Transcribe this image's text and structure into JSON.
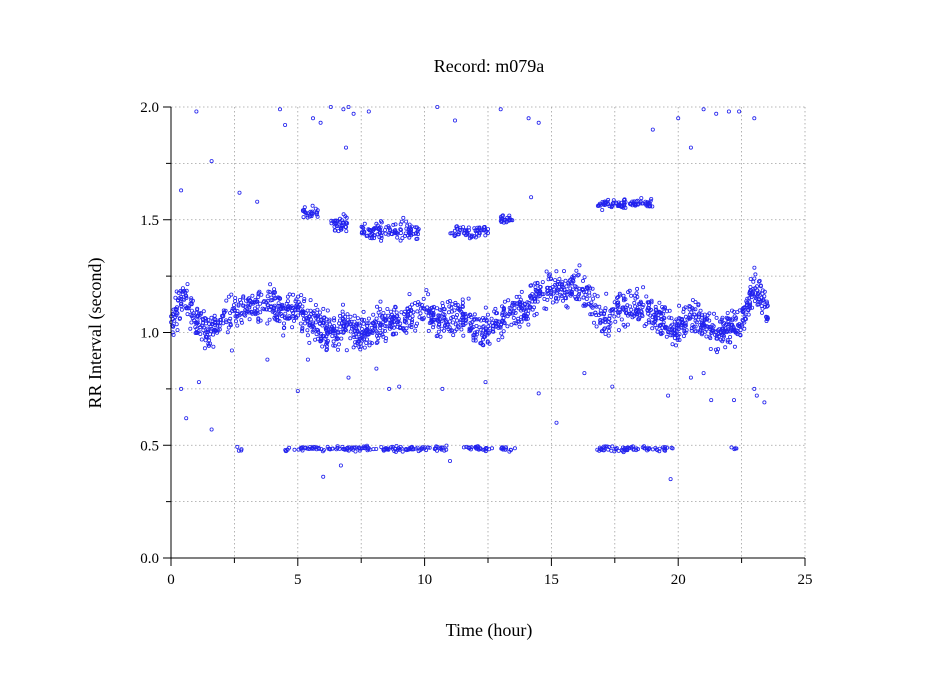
{
  "chart_data": {
    "type": "scatter",
    "title": "Record:  m079a",
    "xlabel": "Time (hour)",
    "ylabel": "RR Interval (second)",
    "xlim": [
      0,
      25
    ],
    "ylim": [
      0.0,
      2.0
    ],
    "xticks": [
      0,
      5,
      10,
      15,
      20,
      25
    ],
    "xtick_labels": [
      "0",
      "5",
      "10",
      "15",
      "20",
      "25"
    ],
    "yticks": [
      0.0,
      0.5,
      1.0,
      1.5,
      2.0
    ],
    "ytick_labels": [
      "0.0",
      "0.5",
      "1.0",
      "1.5",
      "2.0"
    ],
    "grid": true,
    "marker": "open-circle",
    "marker_color": "#2222ee",
    "series": [
      {
        "baseline": [
          [
            0.0,
            1.05
          ],
          [
            0.5,
            1.15
          ],
          [
            1.0,
            1.05
          ],
          [
            1.5,
            1.0
          ],
          [
            2.0,
            1.05
          ],
          [
            2.5,
            1.1
          ],
          [
            3.0,
            1.12
          ],
          [
            3.5,
            1.1
          ],
          [
            4.0,
            1.12
          ],
          [
            4.5,
            1.08
          ],
          [
            5.0,
            1.1
          ],
          [
            5.5,
            1.05
          ],
          [
            6.0,
            1.02
          ],
          [
            6.5,
            1.0
          ],
          [
            7.0,
            1.02
          ],
          [
            7.5,
            1.0
          ],
          [
            8.0,
            1.02
          ],
          [
            8.5,
            1.05
          ],
          [
            9.0,
            1.05
          ],
          [
            9.5,
            1.08
          ],
          [
            10.0,
            1.1
          ],
          [
            10.5,
            1.05
          ],
          [
            11.0,
            1.05
          ],
          [
            11.5,
            1.08
          ],
          [
            12.0,
            1.0
          ],
          [
            12.5,
            1.02
          ],
          [
            13.0,
            1.05
          ],
          [
            13.5,
            1.1
          ],
          [
            14.0,
            1.1
          ],
          [
            14.5,
            1.18
          ],
          [
            15.0,
            1.2
          ],
          [
            15.5,
            1.18
          ],
          [
            16.0,
            1.2
          ],
          [
            16.5,
            1.15
          ],
          [
            17.0,
            1.05
          ],
          [
            17.5,
            1.1
          ],
          [
            18.0,
            1.12
          ],
          [
            18.5,
            1.12
          ],
          [
            19.0,
            1.08
          ],
          [
            19.5,
            1.05
          ],
          [
            20.0,
            1.02
          ],
          [
            20.5,
            1.08
          ],
          [
            21.0,
            1.05
          ],
          [
            21.5,
            1.0
          ],
          [
            22.0,
            1.02
          ],
          [
            22.5,
            1.05
          ],
          [
            23.0,
            1.2
          ],
          [
            23.5,
            1.1
          ]
        ],
        "baseline_spread": 0.12,
        "point_count": 1800,
        "low_band": {
          "y": 0.485,
          "spread": 0.02,
          "segments": [
            [
              2.6,
              2.8
            ],
            [
              4.5,
              11.0
            ],
            [
              11.5,
              12.7
            ],
            [
              13.0,
              13.6
            ],
            [
              16.8,
              19.8
            ],
            [
              22.1,
              22.3
            ]
          ],
          "point_count": 260
        },
        "high_band": {
          "segments": [
            {
              "x": [
                5.2,
                5.8
              ],
              "y": 1.53,
              "spread": 0.04,
              "n": 25
            },
            {
              "x": [
                6.3,
                7.0
              ],
              "y": 1.48,
              "spread": 0.06,
              "n": 40
            },
            {
              "x": [
                7.5,
                9.8
              ],
              "y": 1.45,
              "spread": 0.07,
              "n": 110
            },
            {
              "x": [
                11.0,
                12.6
              ],
              "y": 1.45,
              "spread": 0.05,
              "n": 60
            },
            {
              "x": [
                13.0,
                13.5
              ],
              "y": 1.5,
              "spread": 0.03,
              "n": 25
            },
            {
              "x": [
                16.8,
                19.0
              ],
              "y": 1.57,
              "spread": 0.04,
              "n": 95
            }
          ]
        },
        "top_outliers": [
          [
            1.0,
            1.98
          ],
          [
            4.3,
            1.99
          ],
          [
            4.5,
            1.92
          ],
          [
            5.6,
            1.95
          ],
          [
            5.9,
            1.93
          ],
          [
            6.3,
            2.0
          ],
          [
            6.8,
            1.99
          ],
          [
            7.0,
            2.0
          ],
          [
            7.2,
            1.97
          ],
          [
            7.8,
            1.98
          ],
          [
            10.5,
            2.0
          ],
          [
            11.2,
            1.94
          ],
          [
            13.0,
            1.99
          ],
          [
            14.1,
            1.95
          ],
          [
            14.5,
            1.93
          ],
          [
            19.0,
            1.9
          ],
          [
            20.0,
            1.95
          ],
          [
            20.5,
            1.82
          ],
          [
            21.0,
            1.99
          ],
          [
            21.5,
            1.97
          ],
          [
            22.0,
            1.98
          ],
          [
            22.4,
            1.98
          ],
          [
            23.0,
            1.95
          ],
          [
            6.9,
            1.82
          ],
          [
            1.6,
            1.76
          ]
        ],
        "mid_outliers": [
          [
            0.4,
            0.75
          ],
          [
            0.6,
            0.62
          ],
          [
            1.1,
            0.78
          ],
          [
            1.6,
            0.57
          ],
          [
            2.4,
            0.92
          ],
          [
            3.8,
            0.88
          ],
          [
            5.0,
            0.74
          ],
          [
            5.4,
            0.88
          ],
          [
            7.0,
            0.8
          ],
          [
            8.1,
            0.84
          ],
          [
            8.6,
            0.75
          ],
          [
            9.0,
            0.76
          ],
          [
            10.7,
            0.75
          ],
          [
            12.4,
            0.78
          ],
          [
            14.5,
            0.73
          ],
          [
            15.2,
            0.6
          ],
          [
            16.3,
            0.82
          ],
          [
            17.4,
            0.76
          ],
          [
            19.6,
            0.72
          ],
          [
            20.5,
            0.8
          ],
          [
            21.0,
            0.82
          ],
          [
            21.3,
            0.7
          ],
          [
            22.2,
            0.7
          ],
          [
            23.0,
            0.75
          ],
          [
            23.4,
            0.69
          ],
          [
            6.0,
            0.36
          ],
          [
            6.7,
            0.41
          ],
          [
            11.0,
            0.43
          ],
          [
            14.2,
            1.6
          ],
          [
            2.7,
            1.62
          ],
          [
            3.4,
            1.58
          ],
          [
            0.4,
            1.63
          ],
          [
            23.1,
            0.72
          ],
          [
            19.7,
            0.35
          ]
        ]
      }
    ]
  }
}
